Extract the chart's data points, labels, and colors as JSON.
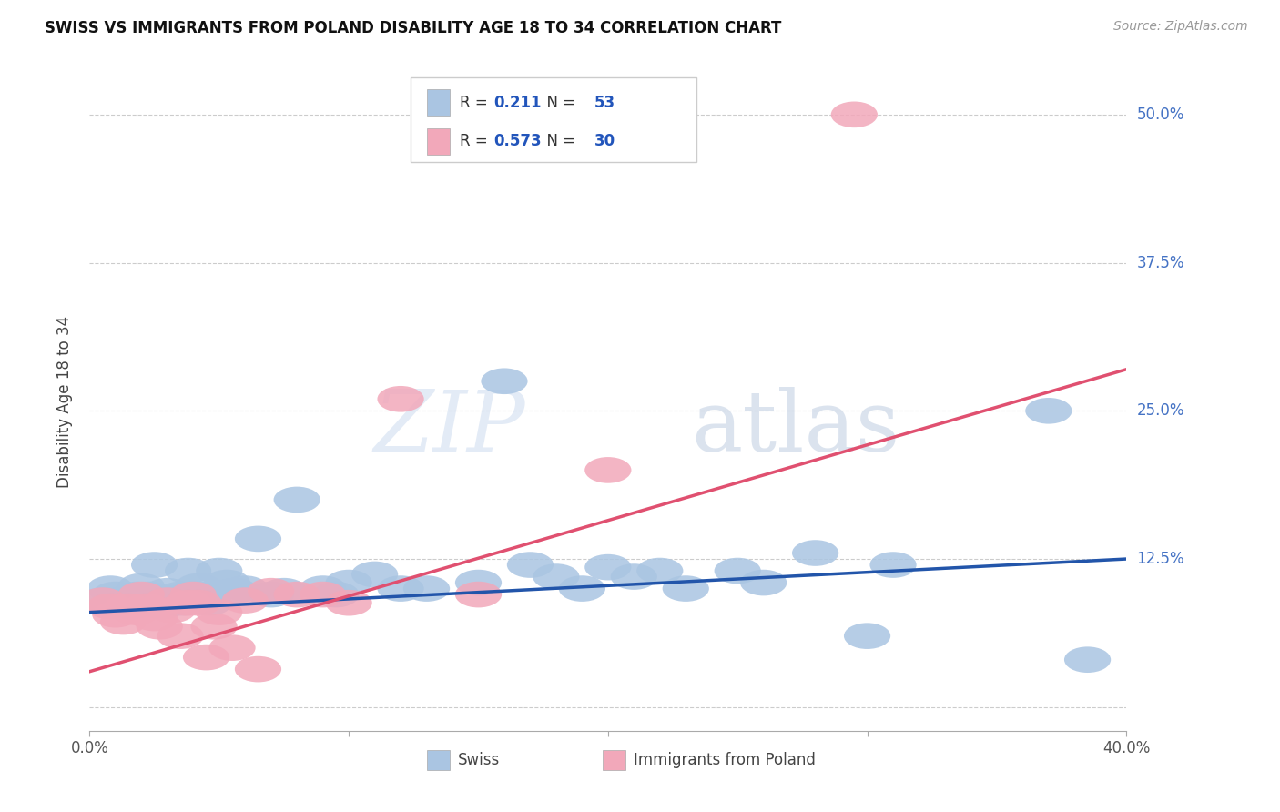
{
  "title": "SWISS VS IMMIGRANTS FROM POLAND DISABILITY AGE 18 TO 34 CORRELATION CHART",
  "source": "Source: ZipAtlas.com",
  "ylabel": "Disability Age 18 to 34",
  "xmin": 0.0,
  "xmax": 0.4,
  "ymin": -0.02,
  "ymax": 0.535,
  "yticks": [
    0.0,
    0.125,
    0.25,
    0.375,
    0.5
  ],
  "ytick_labels": [
    "",
    "12.5%",
    "25.0%",
    "37.5%",
    "50.0%"
  ],
  "xticks": [
    0.0,
    0.1,
    0.2,
    0.3,
    0.4
  ],
  "xtick_labels": [
    "0.0%",
    "",
    "",
    "",
    "40.0%"
  ],
  "swiss_color": "#aac5e2",
  "poland_color": "#f2a8ba",
  "swiss_line_color": "#2255aa",
  "poland_line_color": "#e05070",
  "legend_R_swiss": "0.211",
  "legend_N_swiss": "53",
  "legend_R_poland": "0.573",
  "legend_N_poland": "30",
  "swiss_line_y0": 0.08,
  "swiss_line_y1": 0.125,
  "poland_line_y0": 0.03,
  "poland_line_y1": 0.285,
  "swiss_x": [
    0.005,
    0.008,
    0.01,
    0.012,
    0.015,
    0.016,
    0.018,
    0.02,
    0.022,
    0.023,
    0.025,
    0.027,
    0.028,
    0.03,
    0.032,
    0.033,
    0.035,
    0.036,
    0.038,
    0.04,
    0.042,
    0.044,
    0.046,
    0.05,
    0.053,
    0.056,
    0.06,
    0.065,
    0.07,
    0.075,
    0.08,
    0.09,
    0.095,
    0.1,
    0.11,
    0.12,
    0.13,
    0.15,
    0.16,
    0.17,
    0.18,
    0.19,
    0.2,
    0.21,
    0.22,
    0.23,
    0.25,
    0.26,
    0.28,
    0.3,
    0.31,
    0.37,
    0.385
  ],
  "swiss_y": [
    0.09,
    0.1,
    0.095,
    0.088,
    0.092,
    0.085,
    0.095,
    0.102,
    0.088,
    0.095,
    0.12,
    0.09,
    0.085,
    0.098,
    0.092,
    0.088,
    0.095,
    0.088,
    0.115,
    0.095,
    0.102,
    0.095,
    0.088,
    0.115,
    0.105,
    0.098,
    0.1,
    0.142,
    0.095,
    0.098,
    0.175,
    0.1,
    0.095,
    0.105,
    0.112,
    0.1,
    0.1,
    0.105,
    0.275,
    0.12,
    0.11,
    0.1,
    0.118,
    0.11,
    0.115,
    0.1,
    0.115,
    0.105,
    0.13,
    0.06,
    0.12,
    0.25,
    0.04
  ],
  "poland_x": [
    0.005,
    0.008,
    0.01,
    0.013,
    0.015,
    0.018,
    0.02,
    0.022,
    0.025,
    0.027,
    0.03,
    0.032,
    0.035,
    0.038,
    0.04,
    0.042,
    0.045,
    0.048,
    0.05,
    0.055,
    0.06,
    0.065,
    0.07,
    0.08,
    0.09,
    0.1,
    0.12,
    0.15,
    0.2,
    0.295
  ],
  "poland_y": [
    0.09,
    0.085,
    0.078,
    0.072,
    0.085,
    0.08,
    0.095,
    0.085,
    0.075,
    0.068,
    0.09,
    0.082,
    0.06,
    0.088,
    0.095,
    0.088,
    0.042,
    0.068,
    0.08,
    0.05,
    0.09,
    0.032,
    0.098,
    0.095,
    0.095,
    0.088,
    0.26,
    0.095,
    0.2,
    0.5
  ]
}
